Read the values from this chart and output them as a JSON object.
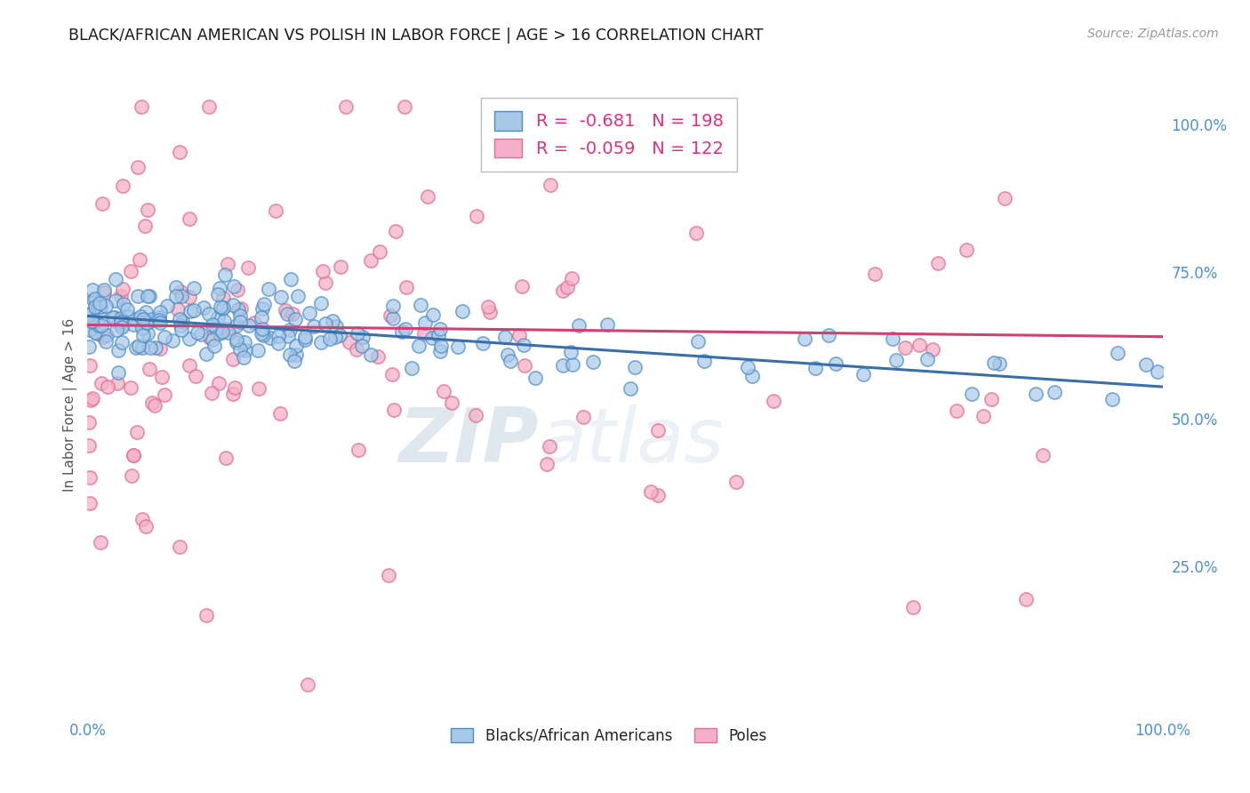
{
  "title": "BLACK/AFRICAN AMERICAN VS POLISH IN LABOR FORCE | AGE > 16 CORRELATION CHART",
  "source_text": "Source: ZipAtlas.com",
  "ylabel": "In Labor Force | Age > 16",
  "right_yticks": [
    "100.0%",
    "75.0%",
    "50.0%",
    "25.0%"
  ],
  "right_ytick_vals": [
    1.0,
    0.75,
    0.5,
    0.25
  ],
  "legend_r_vals": [
    "-0.681",
    "-0.059"
  ],
  "legend_n_vals": [
    "198",
    "122"
  ],
  "watermark_part1": "ZIP",
  "watermark_part2": "atlas",
  "blue_face_color": "#a8c8e8",
  "blue_edge_color": "#4a8cc4",
  "pink_face_color": "#f4b0c8",
  "pink_edge_color": "#e07090",
  "blue_line_color": "#3a6faa",
  "pink_line_color": "#d04070",
  "title_color": "#1a1a1a",
  "axis_tick_color": "#4a90d9",
  "legend_r_color": "#e03080",
  "legend_n_color": "#3a7ad9",
  "legend_label_color": "#222222",
  "bottom_legend": [
    "Blacks/African Americans",
    "Poles"
  ],
  "background_color": "#ffffff",
  "grid_color": "#cccccc",
  "xlim": [
    0.0,
    1.0
  ],
  "ylim": [
    0.0,
    1.05
  ],
  "blue_line_start_y": 0.675,
  "blue_line_end_y": 0.555,
  "pink_line_start_y": 0.66,
  "pink_line_end_y": 0.64
}
